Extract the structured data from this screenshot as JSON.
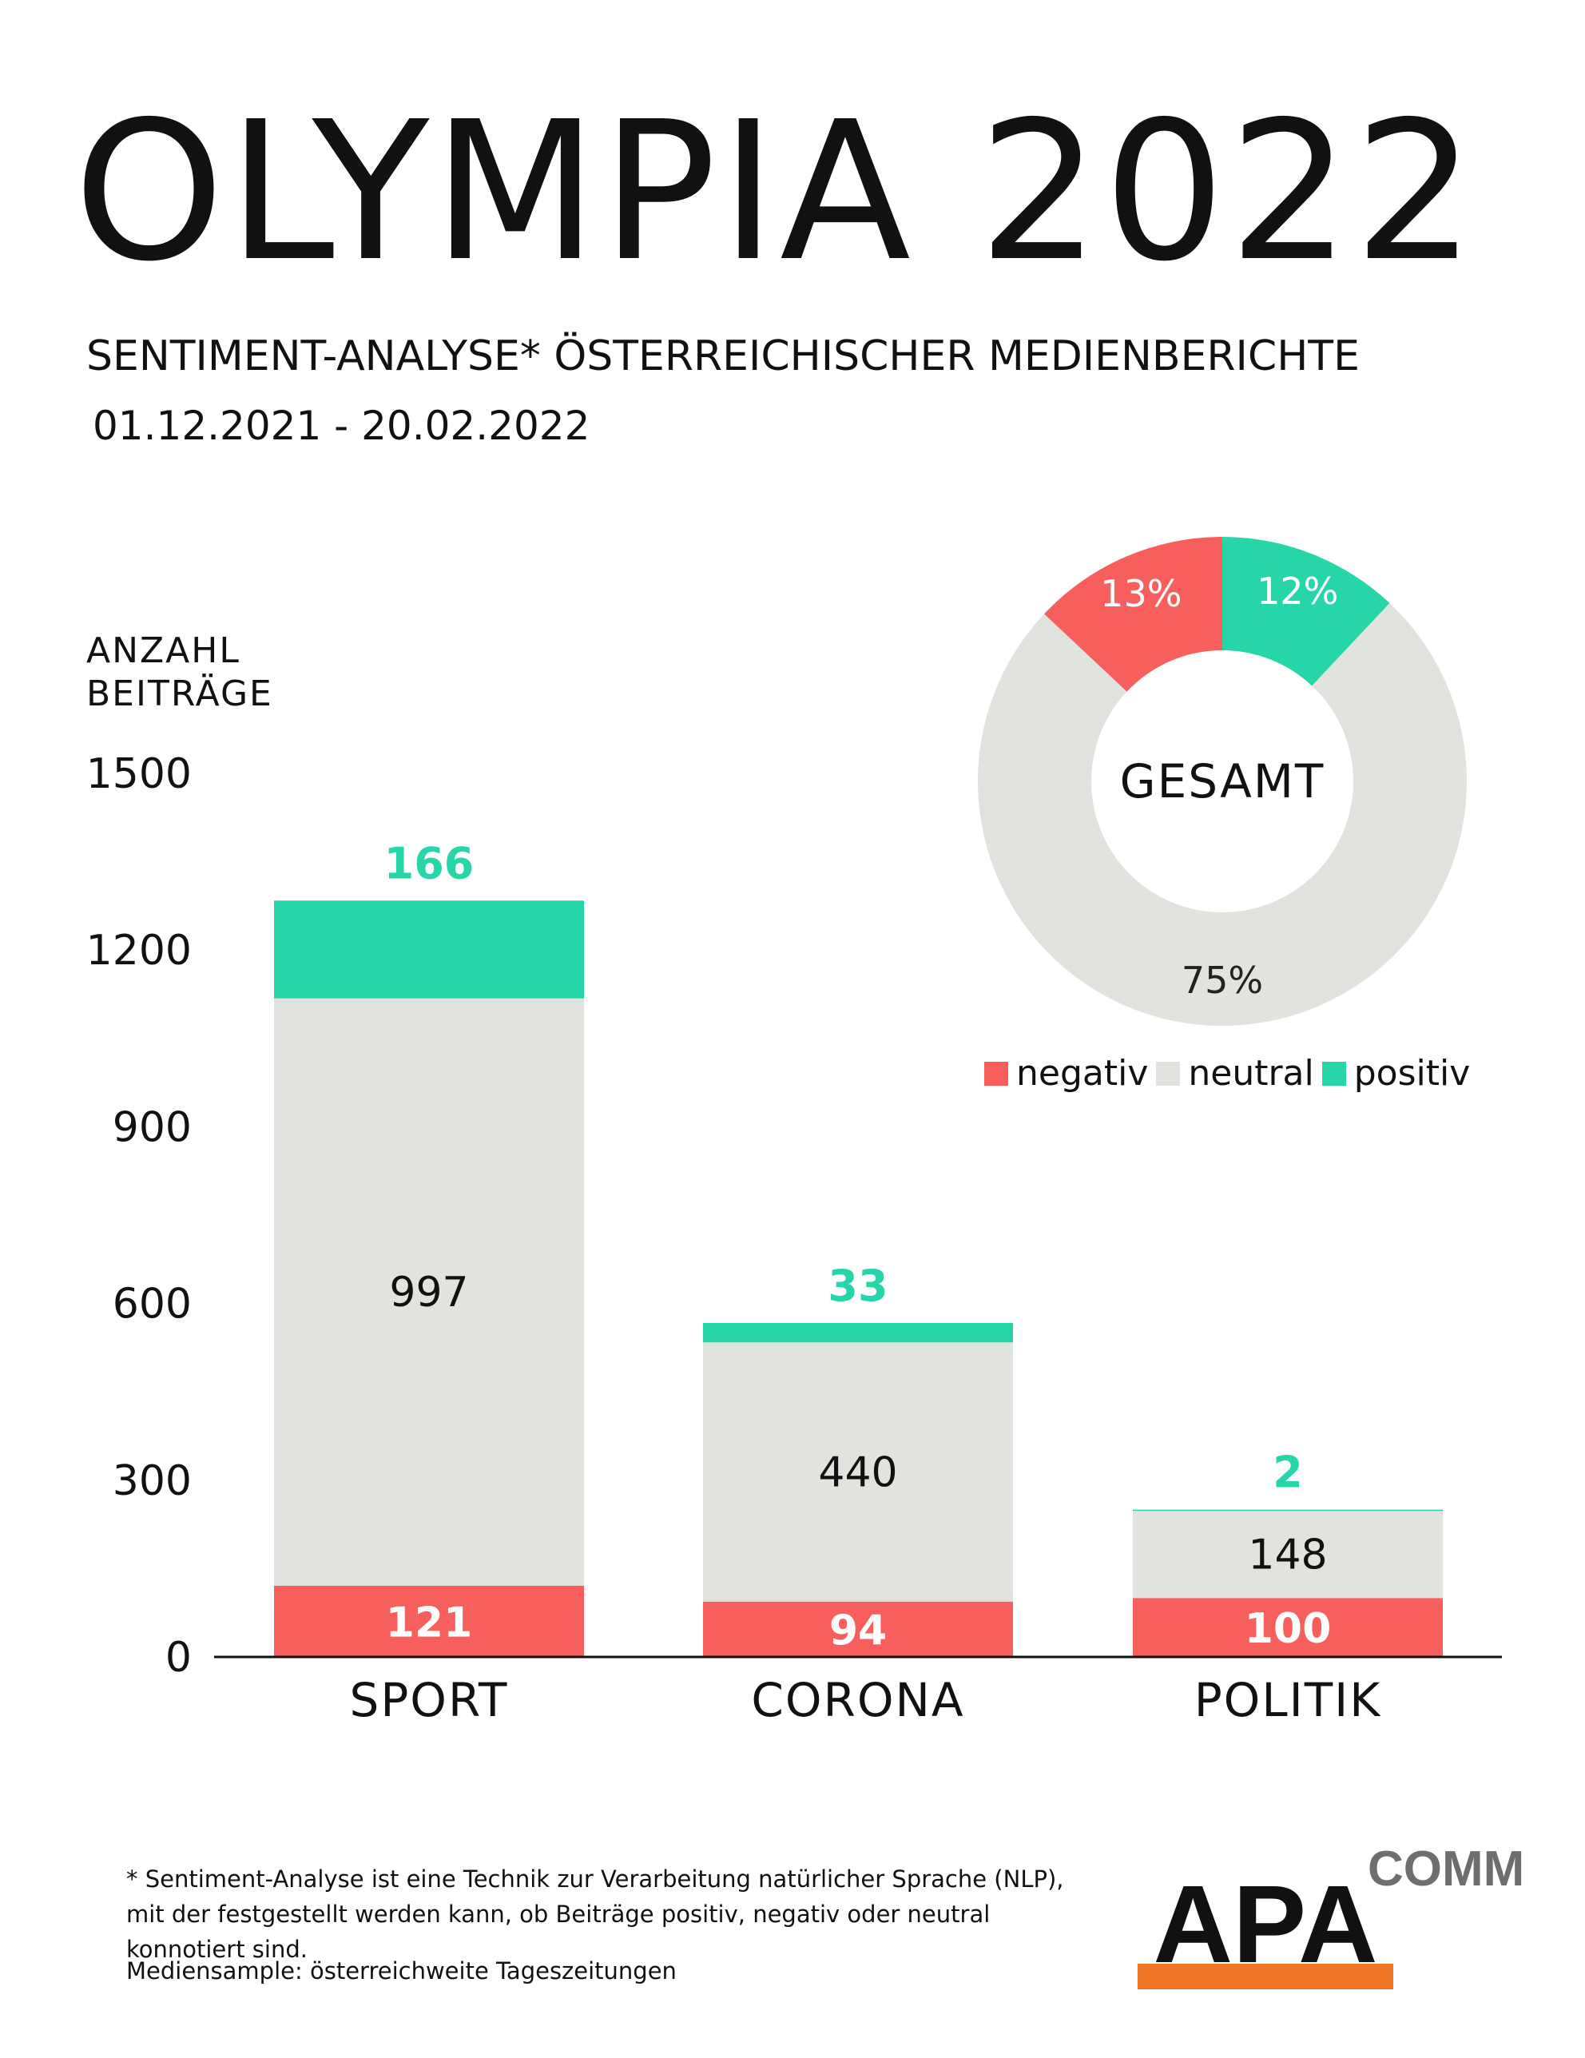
{
  "title": "OLYMPIA 2022",
  "subtitle": "SENTIMENT-ANALYSE* ÖSTERREICHISCHER MEDIENBERICHTE",
  "date_range": "01.12.2021 - 20.02.2022",
  "colors": {
    "negativ": "#f75f5c",
    "neutral": "#e1e3df",
    "positiv": "#27d6a8",
    "positiv_text": "#27d6a8",
    "logo_orange": "#ee7524",
    "logo_gray": "#6e6e6e"
  },
  "chart_data": [
    {
      "type": "bar",
      "stacked": true,
      "ylabel": "ANZAHL BEITRÄGE",
      "ylim": [
        0,
        1500
      ],
      "yticks": [
        0,
        300,
        600,
        900,
        1200,
        1500
      ],
      "categories": [
        "SPORT",
        "CORONA",
        "POLITIK"
      ],
      "series": [
        {
          "name": "negativ",
          "values": [
            121,
            94,
            100
          ]
        },
        {
          "name": "neutral",
          "values": [
            997,
            440,
            148
          ]
        },
        {
          "name": "positiv",
          "values": [
            166,
            33,
            2
          ]
        }
      ]
    },
    {
      "type": "pie",
      "donut": true,
      "center_label": "GESAMT",
      "slices": [
        {
          "name": "negativ",
          "value": 13,
          "label": "13%"
        },
        {
          "name": "positiv",
          "value": 12,
          "label": "12%"
        },
        {
          "name": "neutral",
          "value": 75,
          "label": "75%"
        }
      ],
      "legend": [
        "negativ",
        "neutral",
        "positiv"
      ],
      "legend_position": "bottom"
    }
  ],
  "footnote": "* Sentiment-Analyse ist eine Technik zur Verarbeitung natürlicher Sprache (NLP), mit der festgestellt werden kann, ob Beiträge positiv, negativ oder neutral konnotiert sind.",
  "sample_note": "Mediensample: österreichweite Tageszeitungen",
  "logo": {
    "main": "APA",
    "sub": "COMM"
  }
}
